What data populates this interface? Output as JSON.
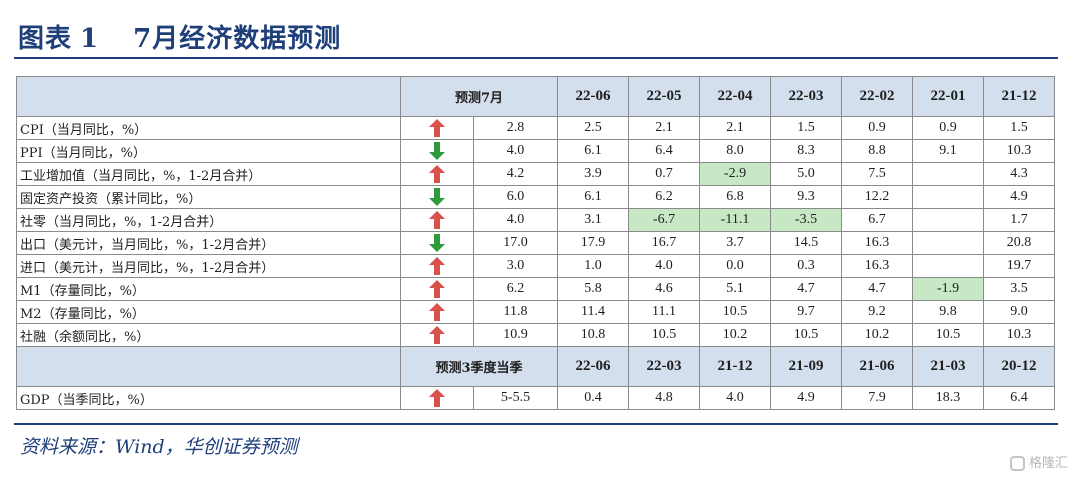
{
  "title": {
    "label": "图表",
    "number": "1",
    "text": "7月经济数据预测"
  },
  "colors": {
    "header_fill": "#d4dfee",
    "highlight_fill": "#c6e8c4",
    "arrow_up": "#d8514a",
    "arrow_down": "#2f9a3c",
    "title_color": "#1f3f7a"
  },
  "table": {
    "header": {
      "forecast": "预测7月",
      "periods": [
        "22-06",
        "22-05",
        "22-04",
        "22-03",
        "22-02",
        "22-01",
        "21-12"
      ]
    },
    "rows": [
      {
        "label": "CPI（当月同比，%）",
        "arrow": "up",
        "forecast": "2.8",
        "values": [
          "2.5",
          "2.1",
          "2.1",
          "1.5",
          "0.9",
          "0.9",
          "1.5"
        ],
        "highlight": []
      },
      {
        "label": "PPI（当月同比，%）",
        "arrow": "down",
        "forecast": "4.0",
        "values": [
          "6.1",
          "6.4",
          "8.0",
          "8.3",
          "8.8",
          "9.1",
          "10.3"
        ],
        "highlight": []
      },
      {
        "label": "工业增加值（当月同比，%，1-2月合并）",
        "arrow": "up",
        "forecast": "4.2",
        "values": [
          "3.9",
          "0.7",
          "-2.9",
          "5.0",
          "7.5",
          "",
          "4.3"
        ],
        "highlight": [
          2
        ]
      },
      {
        "label": "固定资产投资（累计同比，%）",
        "arrow": "down",
        "forecast": "6.0",
        "values": [
          "6.1",
          "6.2",
          "6.8",
          "9.3",
          "12.2",
          "",
          "4.9"
        ],
        "highlight": []
      },
      {
        "label": "社零（当月同比，%，1-2月合并）",
        "arrow": "up",
        "forecast": "4.0",
        "values": [
          "3.1",
          "-6.7",
          "-11.1",
          "-3.5",
          "6.7",
          "",
          "1.7"
        ],
        "highlight": [
          1,
          2,
          3
        ]
      },
      {
        "label": "出口（美元计，当月同比，%，1-2月合并）",
        "arrow": "down",
        "forecast": "17.0",
        "values": [
          "17.9",
          "16.7",
          "3.7",
          "14.5",
          "16.3",
          "",
          "20.8"
        ],
        "highlight": []
      },
      {
        "label": "进口（美元计，当月同比，%，1-2月合并）",
        "arrow": "up",
        "forecast": "3.0",
        "values": [
          "1.0",
          "4.0",
          "0.0",
          "0.3",
          "16.3",
          "",
          "19.7"
        ],
        "highlight": []
      },
      {
        "label": "M1（存量同比，%）",
        "arrow": "up",
        "forecast": "6.2",
        "values": [
          "5.8",
          "4.6",
          "5.1",
          "4.7",
          "4.7",
          "-1.9",
          "3.5"
        ],
        "highlight": [
          5
        ]
      },
      {
        "label": "M2（存量同比，%）",
        "arrow": "up",
        "forecast": "11.8",
        "values": [
          "11.4",
          "11.1",
          "10.5",
          "9.7",
          "9.2",
          "9.8",
          "9.0"
        ],
        "highlight": []
      },
      {
        "label": "社融（余额同比，%）",
        "arrow": "up",
        "forecast": "10.9",
        "values": [
          "10.8",
          "10.5",
          "10.2",
          "10.5",
          "10.2",
          "10.5",
          "10.3"
        ],
        "highlight": []
      }
    ],
    "header2": {
      "forecast": "预测3季度当季",
      "periods": [
        "22-06",
        "22-03",
        "21-12",
        "21-09",
        "21-06",
        "21-03",
        "20-12"
      ]
    },
    "gdp_row": {
      "label": "GDP（当季同比，%）",
      "arrow": "up",
      "forecast": "5-5.5",
      "values": [
        "0.4",
        "4.8",
        "4.0",
        "4.9",
        "7.9",
        "18.3",
        "6.4"
      ],
      "highlight": []
    }
  },
  "source": "资料来源：Wind，华创证券预测",
  "watermark": "格隆汇"
}
